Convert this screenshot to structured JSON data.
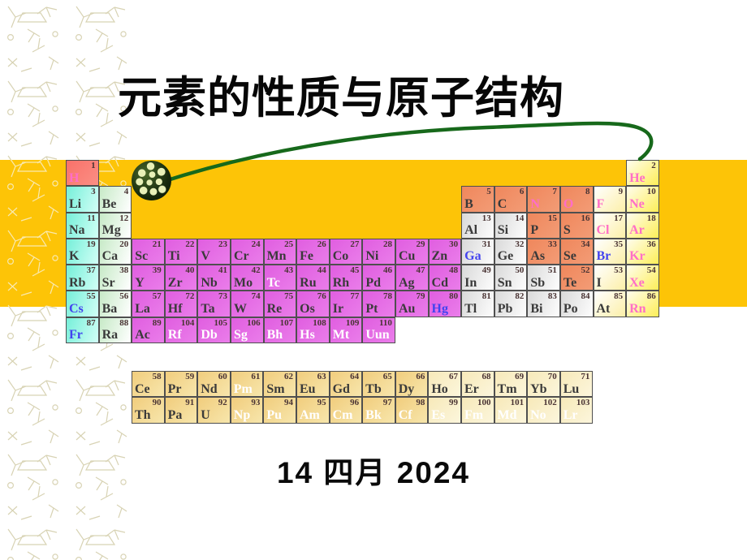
{
  "slide": {
    "title": "元素的性质与原子结构",
    "date": "14 四月 2024"
  },
  "palette": {
    "band": "#FDC407",
    "curve": "#17691B",
    "cellborder": "#4F4F4F",
    "ornament_light": "#D8D3B4",
    "ornament_on_band": "#F9E9AE",
    "text_dark": "#3A3A3A",
    "text_pink": "#FF6EC7",
    "text_blue": "#4343EF",
    "text_white": "#FFFFFF",
    "categories": {
      "hydrogen": [
        "#F9716A",
        "#FA8F84"
      ],
      "alkali": [
        "#76EFD9",
        "#D2FFF6"
      ],
      "alkaline": [
        "#C7EAC7",
        "#FFFFFF"
      ],
      "trans": [
        "#E05EE0",
        "#EA7DEA"
      ],
      "metal": [
        "#D9D9D9",
        "#FDFDFD"
      ],
      "nonmetal": [
        "#F0875C",
        "#F29C76"
      ],
      "halogen": [
        "#FFFFFF",
        "#FCEFA8"
      ],
      "noble": [
        "#FFFDEE",
        "#FDEE58"
      ],
      "fblock": [
        "#F1CD7D",
        "#F7E6AC"
      ],
      "fblock2": [
        "#F7E9B9",
        "#FCF6DC"
      ]
    }
  },
  "periodic_table": {
    "main": [
      {
        "s": "H",
        "n": 1,
        "c": 1,
        "r": 1,
        "b": "hydrogen",
        "f": "pink"
      },
      {
        "s": "He",
        "n": 2,
        "c": 18,
        "r": 1,
        "b": "noble",
        "f": "pink"
      },
      {
        "s": "Li",
        "n": 3,
        "c": 1,
        "r": 2,
        "b": "alkali",
        "f": "dark"
      },
      {
        "s": "Be",
        "n": 4,
        "c": 2,
        "r": 2,
        "b": "alkaline",
        "f": "dark"
      },
      {
        "s": "B",
        "n": 5,
        "c": 13,
        "r": 2,
        "b": "nonmetal",
        "f": "dark"
      },
      {
        "s": "C",
        "n": 6,
        "c": 14,
        "r": 2,
        "b": "nonmetal",
        "f": "dark"
      },
      {
        "s": "N",
        "n": 7,
        "c": 15,
        "r": 2,
        "b": "nonmetal",
        "f": "pink"
      },
      {
        "s": "O",
        "n": 8,
        "c": 16,
        "r": 2,
        "b": "nonmetal",
        "f": "pink"
      },
      {
        "s": "F",
        "n": 9,
        "c": 17,
        "r": 2,
        "b": "halogen",
        "f": "pink"
      },
      {
        "s": "Ne",
        "n": 10,
        "c": 18,
        "r": 2,
        "b": "noble",
        "f": "pink"
      },
      {
        "s": "Na",
        "n": 11,
        "c": 1,
        "r": 3,
        "b": "alkali",
        "f": "dark"
      },
      {
        "s": "Mg",
        "n": 12,
        "c": 2,
        "r": 3,
        "b": "alkaline",
        "f": "dark"
      },
      {
        "s": "Al",
        "n": 13,
        "c": 13,
        "r": 3,
        "b": "metal",
        "f": "dark"
      },
      {
        "s": "Si",
        "n": 14,
        "c": 14,
        "r": 3,
        "b": "metal",
        "f": "dark"
      },
      {
        "s": "P",
        "n": 15,
        "c": 15,
        "r": 3,
        "b": "nonmetal",
        "f": "dark"
      },
      {
        "s": "S",
        "n": 16,
        "c": 16,
        "r": 3,
        "b": "nonmetal",
        "f": "dark"
      },
      {
        "s": "Cl",
        "n": 17,
        "c": 17,
        "r": 3,
        "b": "halogen",
        "f": "pink"
      },
      {
        "s": "Ar",
        "n": 18,
        "c": 18,
        "r": 3,
        "b": "noble",
        "f": "pink"
      },
      {
        "s": "K",
        "n": 19,
        "c": 1,
        "r": 4,
        "b": "alkali",
        "f": "dark"
      },
      {
        "s": "Ca",
        "n": 20,
        "c": 2,
        "r": 4,
        "b": "alkaline",
        "f": "dark"
      },
      {
        "s": "Sc",
        "n": 21,
        "c": 3,
        "r": 4,
        "b": "trans",
        "f": "dark"
      },
      {
        "s": "Ti",
        "n": 22,
        "c": 4,
        "r": 4,
        "b": "trans",
        "f": "dark"
      },
      {
        "s": "V",
        "n": 23,
        "c": 5,
        "r": 4,
        "b": "trans",
        "f": "dark"
      },
      {
        "s": "Cr",
        "n": 24,
        "c": 6,
        "r": 4,
        "b": "trans",
        "f": "dark"
      },
      {
        "s": "Mn",
        "n": 25,
        "c": 7,
        "r": 4,
        "b": "trans",
        "f": "dark"
      },
      {
        "s": "Fe",
        "n": 26,
        "c": 8,
        "r": 4,
        "b": "trans",
        "f": "dark"
      },
      {
        "s": "Co",
        "n": 27,
        "c": 9,
        "r": 4,
        "b": "trans",
        "f": "dark"
      },
      {
        "s": "Ni",
        "n": 28,
        "c": 10,
        "r": 4,
        "b": "trans",
        "f": "dark"
      },
      {
        "s": "Cu",
        "n": 29,
        "c": 11,
        "r": 4,
        "b": "trans",
        "f": "dark"
      },
      {
        "s": "Zn",
        "n": 30,
        "c": 12,
        "r": 4,
        "b": "trans",
        "f": "dark"
      },
      {
        "s": "Ga",
        "n": 31,
        "c": 13,
        "r": 4,
        "b": "metal",
        "f": "blue"
      },
      {
        "s": "Ge",
        "n": 32,
        "c": 14,
        "r": 4,
        "b": "metal",
        "f": "dark"
      },
      {
        "s": "As",
        "n": 33,
        "c": 15,
        "r": 4,
        "b": "nonmetal",
        "f": "dark"
      },
      {
        "s": "Se",
        "n": 34,
        "c": 16,
        "r": 4,
        "b": "nonmetal",
        "f": "dark"
      },
      {
        "s": "Br",
        "n": 35,
        "c": 17,
        "r": 4,
        "b": "halogen",
        "f": "blue"
      },
      {
        "s": "Kr",
        "n": 36,
        "c": 18,
        "r": 4,
        "b": "noble",
        "f": "pink"
      },
      {
        "s": "Rb",
        "n": 37,
        "c": 1,
        "r": 5,
        "b": "alkali",
        "f": "dark"
      },
      {
        "s": "Sr",
        "n": 38,
        "c": 2,
        "r": 5,
        "b": "alkaline",
        "f": "dark"
      },
      {
        "s": "Y",
        "n": 39,
        "c": 3,
        "r": 5,
        "b": "trans",
        "f": "dark"
      },
      {
        "s": "Zr",
        "n": 40,
        "c": 4,
        "r": 5,
        "b": "trans",
        "f": "dark"
      },
      {
        "s": "Nb",
        "n": 41,
        "c": 5,
        "r": 5,
        "b": "trans",
        "f": "dark"
      },
      {
        "s": "Mo",
        "n": 42,
        "c": 6,
        "r": 5,
        "b": "trans",
        "f": "dark"
      },
      {
        "s": "Tc",
        "n": 43,
        "c": 7,
        "r": 5,
        "b": "trans",
        "f": "white"
      },
      {
        "s": "Ru",
        "n": 44,
        "c": 8,
        "r": 5,
        "b": "trans",
        "f": "dark"
      },
      {
        "s": "Rh",
        "n": 45,
        "c": 9,
        "r": 5,
        "b": "trans",
        "f": "dark"
      },
      {
        "s": "Pd",
        "n": 46,
        "c": 10,
        "r": 5,
        "b": "trans",
        "f": "dark"
      },
      {
        "s": "Ag",
        "n": 47,
        "c": 11,
        "r": 5,
        "b": "trans",
        "f": "dark"
      },
      {
        "s": "Cd",
        "n": 48,
        "c": 12,
        "r": 5,
        "b": "trans",
        "f": "dark"
      },
      {
        "s": "In",
        "n": 49,
        "c": 13,
        "r": 5,
        "b": "metal",
        "f": "dark"
      },
      {
        "s": "Sn",
        "n": 50,
        "c": 14,
        "r": 5,
        "b": "metal",
        "f": "dark"
      },
      {
        "s": "Sb",
        "n": 51,
        "c": 15,
        "r": 5,
        "b": "metal",
        "f": "dark"
      },
      {
        "s": "Te",
        "n": 52,
        "c": 16,
        "r": 5,
        "b": "nonmetal",
        "f": "dark"
      },
      {
        "s": "I",
        "n": 53,
        "c": 17,
        "r": 5,
        "b": "halogen",
        "f": "dark"
      },
      {
        "s": "Xe",
        "n": 54,
        "c": 18,
        "r": 5,
        "b": "noble",
        "f": "pink"
      },
      {
        "s": "Cs",
        "n": 55,
        "c": 1,
        "r": 6,
        "b": "alkali",
        "f": "blue"
      },
      {
        "s": "Ba",
        "n": 56,
        "c": 2,
        "r": 6,
        "b": "alkaline",
        "f": "dark"
      },
      {
        "s": "La",
        "n": 57,
        "c": 3,
        "r": 6,
        "b": "trans",
        "f": "dark"
      },
      {
        "s": "Hf",
        "n": 72,
        "c": 4,
        "r": 6,
        "b": "trans",
        "f": "dark"
      },
      {
        "s": "Ta",
        "n": 73,
        "c": 5,
        "r": 6,
        "b": "trans",
        "f": "dark"
      },
      {
        "s": "W",
        "n": 74,
        "c": 6,
        "r": 6,
        "b": "trans",
        "f": "dark"
      },
      {
        "s": "Re",
        "n": 75,
        "c": 7,
        "r": 6,
        "b": "trans",
        "f": "dark"
      },
      {
        "s": "Os",
        "n": 76,
        "c": 8,
        "r": 6,
        "b": "trans",
        "f": "dark"
      },
      {
        "s": "Ir",
        "n": 77,
        "c": 9,
        "r": 6,
        "b": "trans",
        "f": "dark"
      },
      {
        "s": "Pt",
        "n": 78,
        "c": 10,
        "r": 6,
        "b": "trans",
        "f": "dark"
      },
      {
        "s": "Au",
        "n": 79,
        "c": 11,
        "r": 6,
        "b": "trans",
        "f": "dark"
      },
      {
        "s": "Hg",
        "n": 80,
        "c": 12,
        "r": 6,
        "b": "trans",
        "f": "blue"
      },
      {
        "s": "Tl",
        "n": 81,
        "c": 13,
        "r": 6,
        "b": "metal",
        "f": "dark"
      },
      {
        "s": "Pb",
        "n": 82,
        "c": 14,
        "r": 6,
        "b": "metal",
        "f": "dark"
      },
      {
        "s": "Bi",
        "n": 83,
        "c": 15,
        "r": 6,
        "b": "metal",
        "f": "dark"
      },
      {
        "s": "Po",
        "n": 84,
        "c": 16,
        "r": 6,
        "b": "metal",
        "f": "dark"
      },
      {
        "s": "At",
        "n": 85,
        "c": 17,
        "r": 6,
        "b": "halogen",
        "f": "dark"
      },
      {
        "s": "Rn",
        "n": 86,
        "c": 18,
        "r": 6,
        "b": "noble",
        "f": "pink"
      },
      {
        "s": "Fr",
        "n": 87,
        "c": 1,
        "r": 7,
        "b": "alkali",
        "f": "blue"
      },
      {
        "s": "Ra",
        "n": 88,
        "c": 2,
        "r": 7,
        "b": "alkaline",
        "f": "dark"
      },
      {
        "s": "Ac",
        "n": 89,
        "c": 3,
        "r": 7,
        "b": "trans",
        "f": "dark"
      },
      {
        "s": "Rf",
        "n": 104,
        "c": 4,
        "r": 7,
        "b": "trans",
        "f": "white"
      },
      {
        "s": "Db",
        "n": 105,
        "c": 5,
        "r": 7,
        "b": "trans",
        "f": "white"
      },
      {
        "s": "Sg",
        "n": 106,
        "c": 6,
        "r": 7,
        "b": "trans",
        "f": "white"
      },
      {
        "s": "Bh",
        "n": 107,
        "c": 7,
        "r": 7,
        "b": "trans",
        "f": "white"
      },
      {
        "s": "Hs",
        "n": 108,
        "c": 8,
        "r": 7,
        "b": "trans",
        "f": "white"
      },
      {
        "s": "Mt",
        "n": 109,
        "c": 9,
        "r": 7,
        "b": "trans",
        "f": "white"
      },
      {
        "s": "Uun",
        "n": 110,
        "c": 10,
        "r": 7,
        "b": "trans",
        "f": "white"
      }
    ],
    "fblock": [
      {
        "s": "Ce",
        "n": 58,
        "c": 1,
        "r": 1,
        "b": "fblock",
        "f": "dark"
      },
      {
        "s": "Pr",
        "n": 59,
        "c": 2,
        "r": 1,
        "b": "fblock",
        "f": "dark"
      },
      {
        "s": "Nd",
        "n": 60,
        "c": 3,
        "r": 1,
        "b": "fblock",
        "f": "dark"
      },
      {
        "s": "Pm",
        "n": 61,
        "c": 4,
        "r": 1,
        "b": "fblock",
        "f": "white"
      },
      {
        "s": "Sm",
        "n": 62,
        "c": 5,
        "r": 1,
        "b": "fblock",
        "f": "dark"
      },
      {
        "s": "Eu",
        "n": 63,
        "c": 6,
        "r": 1,
        "b": "fblock",
        "f": "dark"
      },
      {
        "s": "Gd",
        "n": 64,
        "c": 7,
        "r": 1,
        "b": "fblock",
        "f": "dark"
      },
      {
        "s": "Tb",
        "n": 65,
        "c": 8,
        "r": 1,
        "b": "fblock",
        "f": "dark"
      },
      {
        "s": "Dy",
        "n": 66,
        "c": 9,
        "r": 1,
        "b": "fblock",
        "f": "dark"
      },
      {
        "s": "Ho",
        "n": 67,
        "c": 10,
        "r": 1,
        "b": "fblock2",
        "f": "dark"
      },
      {
        "s": "Er",
        "n": 68,
        "c": 11,
        "r": 1,
        "b": "fblock2",
        "f": "dark"
      },
      {
        "s": "Tm",
        "n": 69,
        "c": 12,
        "r": 1,
        "b": "fblock2",
        "f": "dark"
      },
      {
        "s": "Yb",
        "n": 70,
        "c": 13,
        "r": 1,
        "b": "fblock2",
        "f": "dark"
      },
      {
        "s": "Lu",
        "n": 71,
        "c": 14,
        "r": 1,
        "b": "fblock2",
        "f": "dark"
      },
      {
        "s": "Th",
        "n": 90,
        "c": 1,
        "r": 2,
        "b": "fblock",
        "f": "dark"
      },
      {
        "s": "Pa",
        "n": 91,
        "c": 2,
        "r": 2,
        "b": "fblock",
        "f": "dark"
      },
      {
        "s": "U",
        "n": 92,
        "c": 3,
        "r": 2,
        "b": "fblock",
        "f": "dark"
      },
      {
        "s": "Np",
        "n": 93,
        "c": 4,
        "r": 2,
        "b": "fblock",
        "f": "white"
      },
      {
        "s": "Pu",
        "n": 94,
        "c": 5,
        "r": 2,
        "b": "fblock",
        "f": "white"
      },
      {
        "s": "Am",
        "n": 95,
        "c": 6,
        "r": 2,
        "b": "fblock",
        "f": "white"
      },
      {
        "s": "Cm",
        "n": 96,
        "c": 7,
        "r": 2,
        "b": "fblock",
        "f": "white"
      },
      {
        "s": "Bk",
        "n": 97,
        "c": 8,
        "r": 2,
        "b": "fblock",
        "f": "white"
      },
      {
        "s": "Cf",
        "n": 98,
        "c": 9,
        "r": 2,
        "b": "fblock",
        "f": "white"
      },
      {
        "s": "Es",
        "n": 99,
        "c": 10,
        "r": 2,
        "b": "fblock2",
        "f": "white"
      },
      {
        "s": "Fm",
        "n": 100,
        "c": 11,
        "r": 2,
        "b": "fblock2",
        "f": "white"
      },
      {
        "s": "Md",
        "n": 101,
        "c": 12,
        "r": 2,
        "b": "fblock2",
        "f": "white"
      },
      {
        "s": "No",
        "n": 102,
        "c": 13,
        "r": 2,
        "b": "fblock2",
        "f": "white"
      },
      {
        "s": "Lr",
        "n": 103,
        "c": 14,
        "r": 2,
        "b": "fblock2",
        "f": "white"
      }
    ]
  }
}
